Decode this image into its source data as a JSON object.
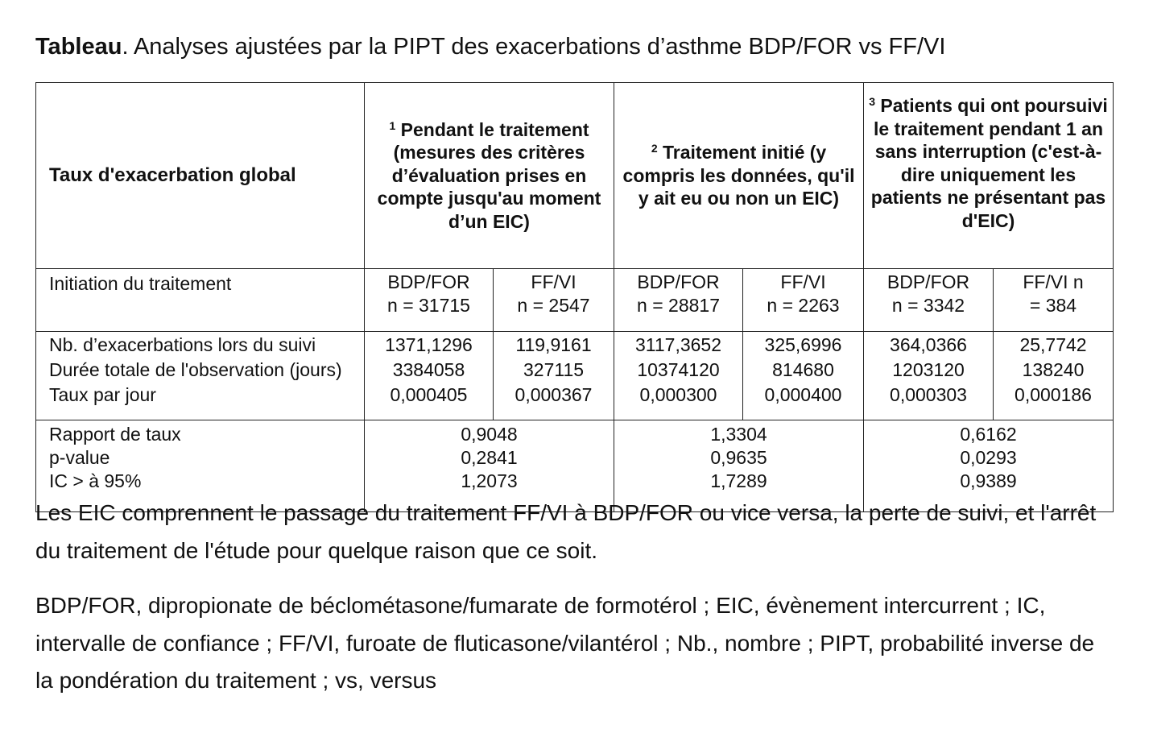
{
  "title": {
    "bold": "Tableau",
    "rest": ". Analyses ajustées par la PIPT des exacerbations d’asthme BDP/FOR vs FF/VI"
  },
  "table": {
    "header": {
      "col0": "Taux d'exacerbation global",
      "groups": [
        {
          "sup": "1",
          "text": "Pendant le traitement (mesures des critères d’évaluation prises en compte jusqu'au moment d’un EIC)"
        },
        {
          "sup": "2",
          "text": "Traitement initié (y compris les données, qu'il y ait eu ou non un EIC)"
        },
        {
          "sup": "3",
          "text": "Patients qui ont poursuivi le traitement pendant 1 an sans interruption (c'est-à-dire uniquement les patients ne présentant pas d'EIC)"
        }
      ]
    },
    "init_row": {
      "label": "Initiation du traitement",
      "cells": [
        {
          "l1": "BDP/FOR",
          "l2": "n = 31715"
        },
        {
          "l1": "FF/VI",
          "l2": "n = 2547"
        },
        {
          "l1": "BDP/FOR",
          "l2": "n = 28817"
        },
        {
          "l1": "FF/VI",
          "l2": "n = 2263"
        },
        {
          "l1": "BDP/FOR",
          "l2": "n = 3342"
        },
        {
          "l1": "FF/VI n",
          "l2": "= 384"
        }
      ]
    },
    "data_row": {
      "labels": [
        "Nb. d’exacerbations lors du suivi",
        "Durée totale de l'observation (jours)",
        "Taux par jour"
      ],
      "cells": [
        [
          "1371,1296",
          "3384058",
          "0,000405"
        ],
        [
          "119,9161",
          "327115",
          "0,000367"
        ],
        [
          "3117,3652",
          "10374120",
          "0,000300"
        ],
        [
          "325,6996",
          "814680",
          "0,000400"
        ],
        [
          "364,0366",
          "1203120",
          "0,000303"
        ],
        [
          "25,7742",
          "138240",
          "0,000186"
        ]
      ]
    },
    "ratio_row": {
      "labels": [
        "Rapport de taux",
        "p-value",
        "IC > à 95%"
      ],
      "cells": [
        [
          "0,9048",
          "0,2841",
          "1,2073"
        ],
        [
          "1,3304",
          "0,9635",
          "1,7289"
        ],
        [
          "0,6162",
          "0,0293",
          "0,9389"
        ]
      ]
    }
  },
  "notes": [
    "Les EIC comprennent le passage du traitement FF/VI à BDP/FOR ou vice versa, la perte de suivi, et l'arrêt du traitement de l'étude pour quelque raison que ce soit.",
    "BDP/FOR, dipropionate de béclométasone/fumarate de formotérol ; EIC, évènement intercurrent ; IC, intervalle de confiance ; FF/VI, furoate de fluticasone/vilantérol ; Nb., nombre ; PIPT, probabilité inverse de la pondération du traitement ; vs, versus"
  ]
}
